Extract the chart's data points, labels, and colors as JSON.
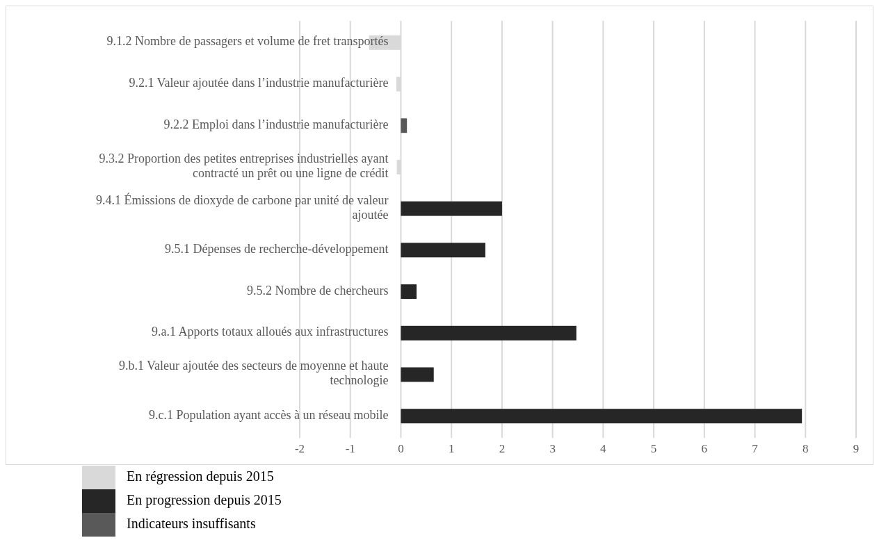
{
  "chart_data": {
    "type": "bar",
    "orientation": "horizontal",
    "stacked": true,
    "categories": [
      "9.1.2 Nombre de passagers et volume de fret transportés",
      "9.2.1 Valeur ajoutée dans l’industrie manufacturière",
      "9.2.2 Emploi dans l’industrie manufacturière",
      "9.3.2 Proportion des petites entreprises industrielles ayant contracté un prêt ou une ligne de crédit",
      "9.4.1 Émissions de dioxyde de carbone par unité de valeur ajoutée",
      "9.5.1 Dépenses de recherche-développement",
      "9.5.2 Nombre de chercheurs",
      "9.a.1 Apports totaux alloués aux infrastructures",
      "9.b.1 Valeur ajoutée des secteurs de moyenne et haute technologie",
      "9.c.1 Population ayant accès à un réseau mobile"
    ],
    "series": [
      {
        "name": "En régression depuis 2015",
        "color": "#d9d9d9",
        "values": [
          -0.63,
          -0.09,
          null,
          -0.08,
          null,
          null,
          null,
          null,
          null,
          null
        ]
      },
      {
        "name": "En progression depuis 2015",
        "color": "#262626",
        "values": [
          null,
          null,
          null,
          null,
          2.0,
          1.67,
          0.31,
          3.47,
          0.65,
          7.93
        ]
      },
      {
        "name": "Indicateurs insuffisants",
        "color": "#595959",
        "values": [
          null,
          null,
          0.12,
          null,
          null,
          null,
          null,
          null,
          null,
          null
        ]
      }
    ],
    "xlim": [
      -2,
      9
    ],
    "xticks": [
      -2,
      -1,
      0,
      1,
      2,
      3,
      4,
      5,
      6,
      7,
      8,
      9
    ],
    "grid": "x",
    "legend": "bottom left"
  }
}
